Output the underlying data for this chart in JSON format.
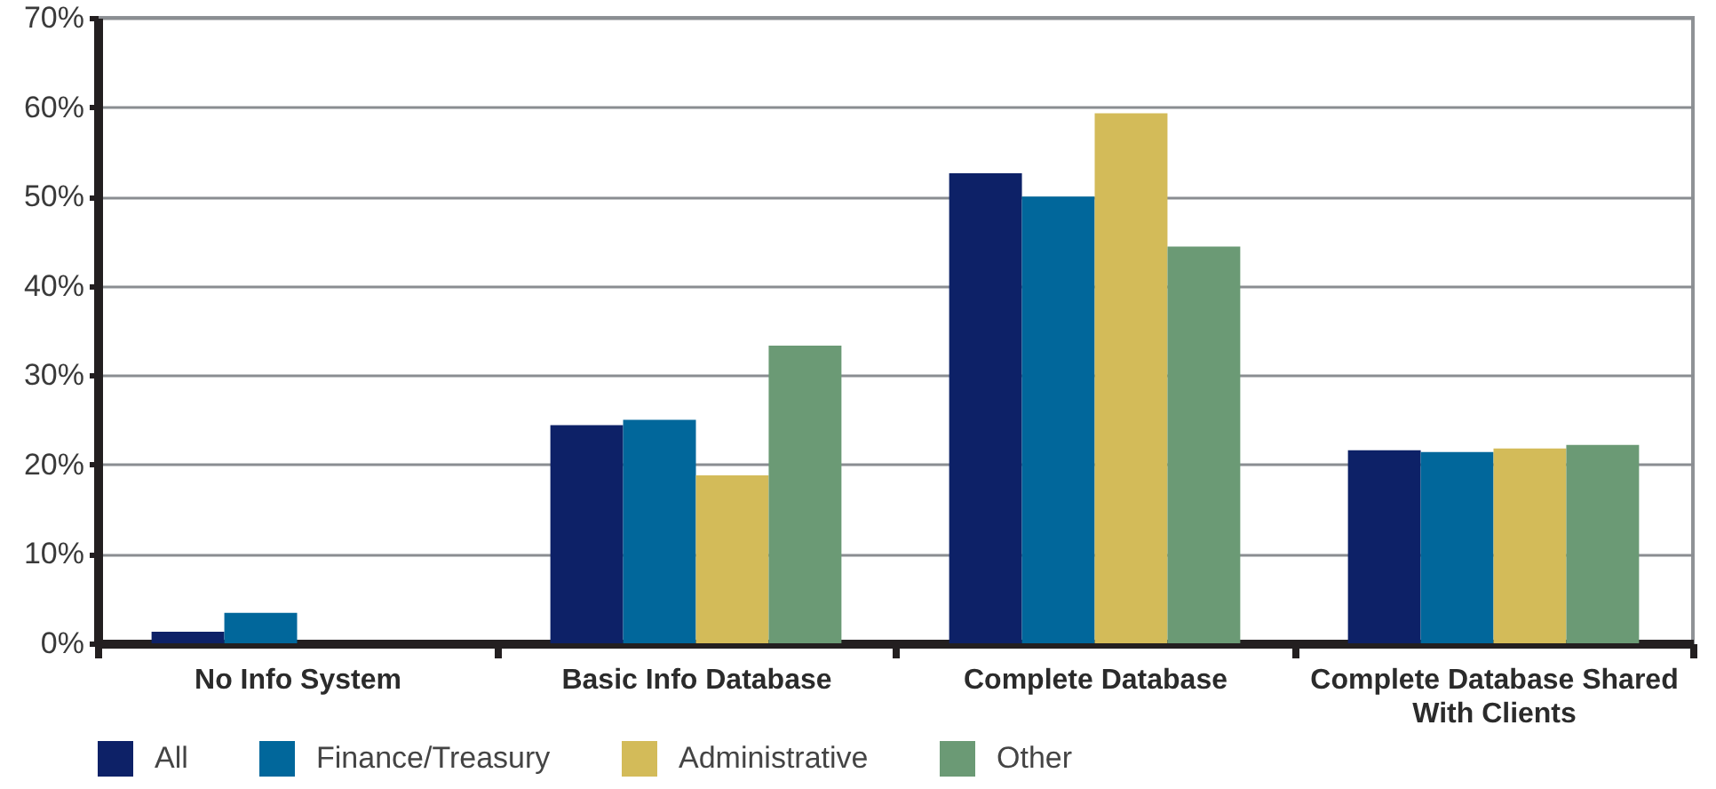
{
  "chart_data": {
    "type": "bar",
    "categories": [
      "No Info System",
      "Basic Info Database",
      "Complete Database",
      "Complete Database Shared With Clients"
    ],
    "series": [
      {
        "name": "All",
        "color": "#0d2167",
        "values": [
          1.3,
          24.4,
          52.6,
          21.6
        ]
      },
      {
        "name": "Finance/Treasury",
        "color": "#01679b",
        "values": [
          3.4,
          25.0,
          50.0,
          21.4
        ]
      },
      {
        "name": "Administrative",
        "color": "#d3bb59",
        "values": [
          0,
          18.8,
          59.3,
          21.8
        ]
      },
      {
        "name": "Other",
        "color": "#6b9a75",
        "values": [
          0,
          33.3,
          44.4,
          22.2
        ]
      }
    ],
    "ylim": [
      0,
      70
    ],
    "yticks": [
      {
        "value": 0,
        "label": "0%"
      },
      {
        "value": 10,
        "label": "10%"
      },
      {
        "value": 20,
        "label": "20%"
      },
      {
        "value": 30,
        "label": "30%"
      },
      {
        "value": 40,
        "label": "40%"
      },
      {
        "value": 50,
        "label": "50%"
      },
      {
        "value": 60,
        "label": "60%"
      },
      {
        "value": 70,
        "label": "70%"
      }
    ],
    "grid": "y",
    "legend": "bottom"
  }
}
